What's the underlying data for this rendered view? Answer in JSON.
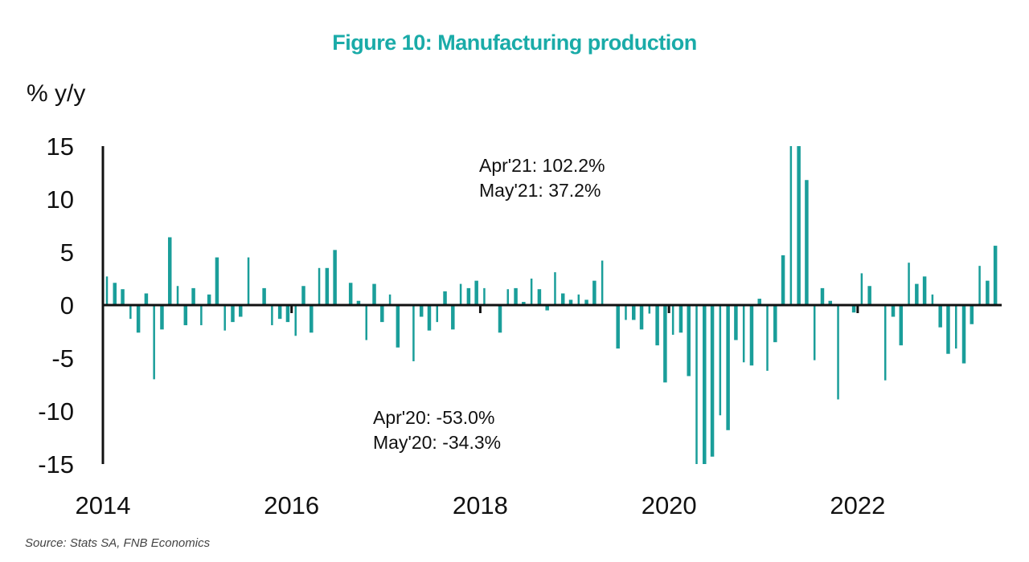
{
  "title": "Figure 10: Manufacturing production",
  "source": "Source: Stats SA, FNB Economics",
  "colors": {
    "title": "#1aaba8",
    "bar": "#1a9e9a",
    "axis": "#111111"
  },
  "chart_data": {
    "type": "bar",
    "title": "Figure 10: Manufacturing production",
    "xlabel": "",
    "ylabel": "% y/y",
    "ylim": [
      -15,
      15
    ],
    "yticks": [
      15,
      10,
      5,
      0,
      -5,
      -10,
      -15
    ],
    "xticks": [
      "2014",
      "2016",
      "2018",
      "2020",
      "2022"
    ],
    "x_start": "2014-01",
    "x_end": "2023-06",
    "frequency": "monthly",
    "grid": false,
    "legend": "none",
    "annotations": [
      {
        "lines": [
          "Apr'21: 102.2%",
          "May'21: 37.2%"
        ],
        "position": "upper-center"
      },
      {
        "lines": [
          "Apr'20: -53.0%",
          "May'20: -34.3%"
        ],
        "position": "lower-center"
      }
    ],
    "series": [
      {
        "name": "Manufacturing production % y/y",
        "values": [
          2.7,
          2.1,
          1.5,
          -1.3,
          -2.6,
          1.1,
          -7.0,
          -2.3,
          6.4,
          1.8,
          -1.9,
          1.6,
          -1.9,
          1.0,
          4.5,
          -2.4,
          -1.6,
          -1.1,
          4.5,
          0.1,
          1.6,
          -1.9,
          -1.3,
          -1.6,
          -2.9,
          1.8,
          -2.6,
          3.5,
          3.5,
          5.2,
          0.1,
          2.1,
          0.4,
          -3.3,
          2.0,
          -1.6,
          1.0,
          -4.0,
          0.0,
          -5.3,
          -1.1,
          -2.4,
          -1.6,
          1.3,
          -2.3,
          2.0,
          1.6,
          2.3,
          1.6,
          0.1,
          -2.6,
          1.5,
          1.6,
          0.3,
          2.5,
          1.5,
          -0.5,
          3.1,
          1.1,
          0.5,
          1.0,
          0.5,
          2.3,
          4.2,
          0.1,
          -4.1,
          -1.4,
          -1.4,
          -2.3,
          -0.8,
          -3.8,
          -7.3,
          -2.8,
          -2.6,
          -6.7,
          -53.0,
          -34.3,
          -14.3,
          -10.4,
          -11.8,
          -3.3,
          -5.4,
          -5.7,
          0.6,
          -6.2,
          -3.5,
          4.7,
          102.2,
          37.2,
          11.8,
          -5.2,
          1.6,
          0.4,
          -8.9,
          0.0,
          -0.7,
          3.0,
          1.8,
          0.1,
          -7.1,
          -1.1,
          -3.8,
          4.0,
          2.0,
          2.7,
          1.0,
          -2.1,
          -4.6,
          -4.1,
          -5.5,
          -1.8,
          3.7,
          2.3,
          5.6
        ]
      }
    ]
  }
}
